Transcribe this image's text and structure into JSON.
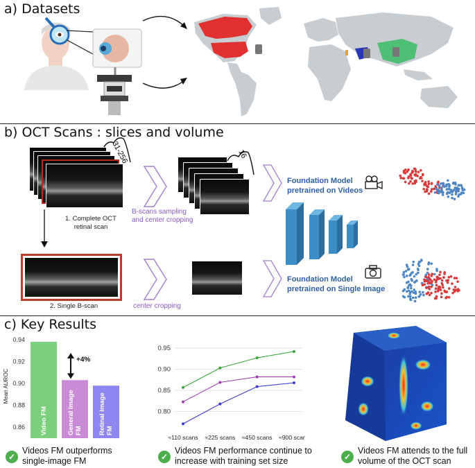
{
  "sections": {
    "a_title": "a) Datasets",
    "b_title": "b) OCT Scans : slices and volume",
    "c_title": "c) Key Results"
  },
  "oct": {
    "stack_count": "31-256",
    "sample_count": "16",
    "complete_caption_1": "1. Complete OCT",
    "complete_caption_2": "retinal scan",
    "single_caption": "2. Single B-scan",
    "sampling_label_1": "B-scans sampling",
    "sampling_label_2": "and center cropping",
    "cropping_label": "center cropping",
    "video_model_1": "Foundation Model",
    "video_model_2": "pretrained on Videos",
    "image_model_1": "Foundation Model",
    "image_model_2": "pretrained on Single Image"
  },
  "results": {
    "r1_line1": "Videos FM outperforms",
    "r1_line2": "single-image FM",
    "r2_line1": "Videos FM performance continue to",
    "r2_line2": "increase with training set size",
    "r3_line1": "Videos FM attends to the full",
    "r3_line2": "volume of the OCT scan"
  },
  "colors": {
    "video": "#7ccf7c",
    "general": "#c98ad6",
    "retinal": "#8f86f2",
    "land": "#c7cdd1",
    "usa": "#e03030",
    "china": "#4fbf75",
    "green_line": "#3aa63a",
    "purple_line": "#a03cb5",
    "blue_line": "#3a3ad0"
  },
  "chart_data": [
    {
      "type": "bar",
      "ylabel": "Mean AUROC",
      "categories": [
        "Video FM",
        "General Image FM",
        "Retinal Image FM"
      ],
      "values": [
        0.938,
        0.903,
        0.898
      ],
      "ylim": [
        0.85,
        0.945
      ],
      "yticks": [
        "0.86",
        "0.88",
        "0.90",
        "0.92",
        "0.94"
      ],
      "annotation": "+4%"
    },
    {
      "type": "line",
      "categories": [
        "≈110 scans",
        "≈225 scans",
        "≈450 scans",
        "≈900 scans"
      ],
      "ylim": [
        0.76,
        0.96
      ],
      "yticks": [
        "0.80",
        "0.85",
        "0.90",
        "0.95"
      ],
      "series": [
        {
          "values": [
            0.857,
            0.903,
            0.927,
            0.942
          ]
        },
        {
          "values": [
            0.823,
            0.869,
            0.882,
            0.882
          ]
        },
        {
          "values": [
            0.771,
            0.818,
            0.859,
            0.868
          ]
        }
      ]
    }
  ]
}
